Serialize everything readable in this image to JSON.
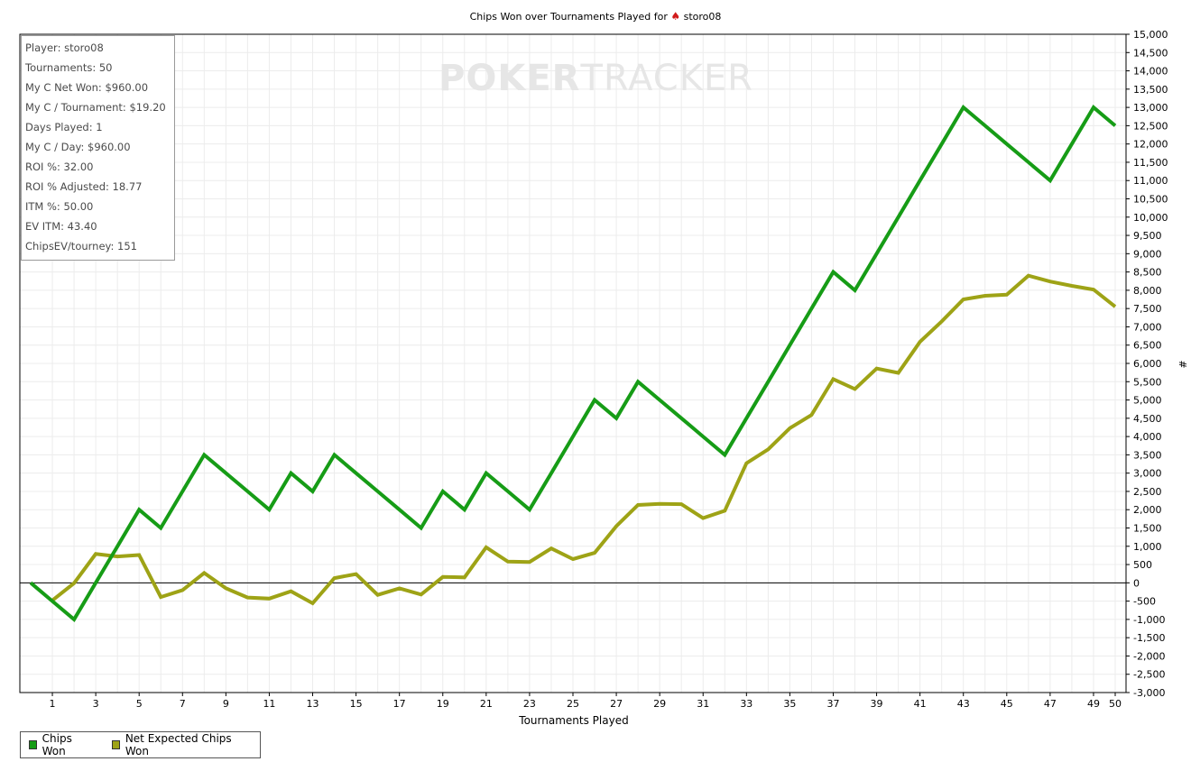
{
  "chart_data": {
    "type": "line",
    "title": "Chips Won over Tournaments Played for",
    "title_player": "storo08",
    "xlabel": "Tournaments Played",
    "ylabel": "#",
    "xlim": [
      0,
      50
    ],
    "ylim": [
      -3000,
      15000
    ],
    "x_ticks": [
      1,
      3,
      5,
      7,
      9,
      11,
      13,
      15,
      17,
      19,
      21,
      23,
      25,
      27,
      29,
      31,
      33,
      35,
      37,
      39,
      41,
      43,
      45,
      47,
      49,
      50
    ],
    "y_ticks": [
      -3000,
      -2500,
      -2000,
      -1500,
      -1000,
      -500,
      0,
      500,
      1000,
      1500,
      2000,
      2500,
      3000,
      3500,
      4000,
      4500,
      5000,
      5500,
      6000,
      6500,
      7000,
      7500,
      8000,
      8500,
      9000,
      9500,
      10000,
      10500,
      11000,
      11500,
      12000,
      12500,
      13000,
      13500,
      14000,
      14500,
      15000
    ],
    "grid": true,
    "legend_position": "bottom-left",
    "series": [
      {
        "name": "Chips Won",
        "color": "#169c16",
        "x": [
          0,
          1,
          2,
          3,
          4,
          5,
          6,
          7,
          8,
          9,
          10,
          11,
          12,
          13,
          14,
          15,
          16,
          17,
          18,
          19,
          20,
          21,
          22,
          23,
          24,
          25,
          26,
          27,
          28,
          29,
          30,
          31,
          32,
          33,
          34,
          35,
          36,
          37,
          38,
          39,
          40,
          41,
          42,
          43,
          44,
          45,
          46,
          47,
          48,
          49,
          50
        ],
        "values": [
          0,
          -500,
          -1000,
          0,
          1000,
          2000,
          1500,
          2500,
          3500,
          3000,
          2500,
          2000,
          3000,
          2500,
          3500,
          3000,
          2500,
          2000,
          1500,
          2500,
          2000,
          3000,
          2500,
          2000,
          3000,
          4000,
          5000,
          4500,
          5500,
          5000,
          4500,
          4000,
          3500,
          4500,
          5500,
          6500,
          7500,
          8500,
          8000,
          9000,
          10000,
          11000,
          12000,
          13000,
          12500,
          12000,
          11500,
          11000,
          12000,
          13000,
          12500
        ]
      },
      {
        "name": "Net Expected Chips Won",
        "color": "#9ea316",
        "x": [
          1,
          2,
          3,
          4,
          5,
          6,
          7,
          8,
          9,
          10,
          11,
          12,
          13,
          14,
          15,
          16,
          17,
          18,
          19,
          20,
          21,
          22,
          23,
          24,
          25,
          26,
          27,
          28,
          29,
          30,
          31,
          32,
          33,
          34,
          35,
          36,
          37,
          38,
          39,
          40,
          41,
          42,
          43,
          44,
          45,
          46,
          47,
          48,
          49,
          50
        ],
        "values": [
          -480,
          -10,
          790,
          720,
          760,
          -390,
          -200,
          270,
          -150,
          -400,
          -430,
          -230,
          -560,
          130,
          240,
          -330,
          -150,
          -320,
          160,
          150,
          970,
          580,
          570,
          940,
          650,
          820,
          1550,
          2130,
          2160,
          2150,
          1770,
          1970,
          3270,
          3650,
          4230,
          4590,
          5570,
          5300,
          5860,
          5740,
          6590,
          7150,
          7750,
          7850,
          7880,
          8400,
          8240,
          8120,
          8020,
          7550
        ]
      }
    ],
    "stats": [
      "Player: storo08",
      "Tournaments: 50",
      "My C Net Won: $960.00",
      "My C / Tournament: $19.20",
      "Days Played: 1",
      "My C / Day: $960.00",
      "ROI %: 32.00",
      "ROI % Adjusted: 18.77",
      "ITM %: 50.00",
      "EV ITM: 43.40",
      "ChipsEV/tourney: 151"
    ],
    "watermark": {
      "part1": "POKER",
      "part2": "TRACKER"
    }
  }
}
